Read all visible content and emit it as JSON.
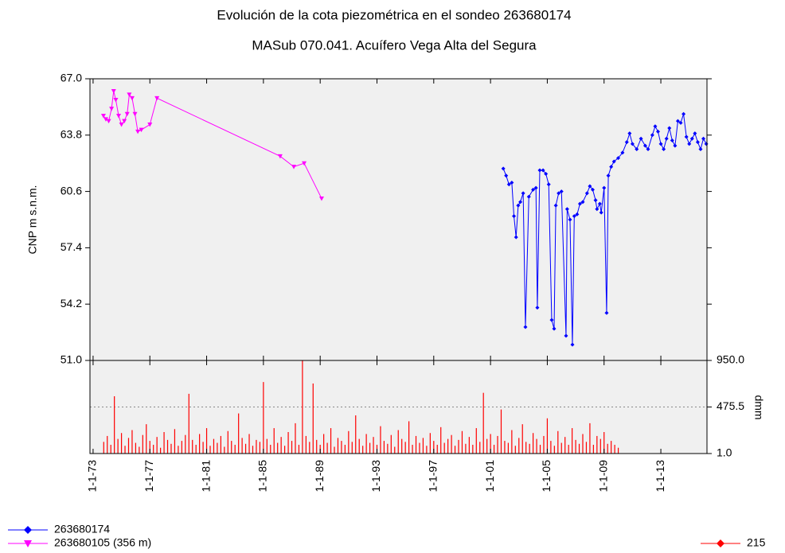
{
  "chart_data": [
    {
      "type": "line",
      "title": "Evolución de la cota piezométrica en el sondeo 263680174",
      "subtitle": "MASub 070.041. Acuífero Vega Alta del Segura",
      "y_label": "CNP m s.n.m.",
      "xlim": [
        1972.78,
        2016.25
      ],
      "ylim": [
        51,
        67
      ],
      "yticks": [
        {
          "value": 51,
          "label": "51.0"
        },
        54.2,
        57.4,
        60.6,
        63.8,
        {
          "value": 67,
          "label": "67.0"
        }
      ],
      "series": [
        {
          "name": "263680174",
          "color": "#0000ff",
          "marker": "diamond",
          "x": [
            2001.9,
            2002.1,
            2002.3,
            2002.5,
            2002.65,
            2002.8,
            2002.95,
            2003.1,
            2003.3,
            2003.46,
            2003.7,
            2004.0,
            2004.2,
            2004.3,
            2004.47,
            2004.7,
            2004.9,
            2005.1,
            2005.31,
            2005.48,
            2005.6,
            2005.8,
            2006.0,
            2006.32,
            2006.4,
            2006.6,
            2006.77,
            2006.9,
            2007.1,
            2007.3,
            2007.5,
            2007.8,
            2008.0,
            2008.2,
            2008.4,
            2008.5,
            2008.7,
            2008.8,
            2009.0,
            2009.18,
            2009.3,
            2009.5,
            2009.7,
            2010.0,
            2010.3,
            2010.6,
            2010.8,
            2011.0,
            2011.3,
            2011.6,
            2011.9,
            2012.1,
            2012.4,
            2012.6,
            2012.8,
            2013.0,
            2013.2,
            2013.4,
            2013.6,
            2013.8,
            2014.0,
            2014.2,
            2014.4,
            2014.6,
            2014.8,
            2015.0,
            2015.2,
            2015.4,
            2015.6,
            2015.8,
            2016.0,
            2016.2
          ],
          "values": [
            61.9,
            61.5,
            61.0,
            61.1,
            59.2,
            58.0,
            59.8,
            60.0,
            60.5,
            52.9,
            60.3,
            60.7,
            60.8,
            54.0,
            61.8,
            61.8,
            61.6,
            61.0,
            53.3,
            52.8,
            59.8,
            60.5,
            60.6,
            52.4,
            59.6,
            59.0,
            51.9,
            59.2,
            59.3,
            59.9,
            60.0,
            60.5,
            60.9,
            60.7,
            60.1,
            59.6,
            59.9,
            59.4,
            60.8,
            53.7,
            61.5,
            62.0,
            62.3,
            62.5,
            62.8,
            63.4,
            63.9,
            63.3,
            63.0,
            63.6,
            63.2,
            63.0,
            63.8,
            64.3,
            64.0,
            63.3,
            63.0,
            63.6,
            64.2,
            63.5,
            63.2,
            64.6,
            64.5,
            65.0,
            63.7,
            63.3,
            63.6,
            63.9,
            63.4,
            63.0,
            63.6,
            63.3
          ]
        },
        {
          "name": "263680105 (356 m)",
          "color": "#ff00ff",
          "marker": "triangle-down",
          "x": [
            1973.73,
            1973.9,
            1974.1,
            1974.3,
            1974.45,
            1974.6,
            1974.8,
            1975.0,
            1975.2,
            1975.4,
            1975.55,
            1975.75,
            1975.95,
            1976.15,
            1976.4,
            1977.0,
            1977.5,
            1986.18,
            1987.14,
            1987.87,
            1989.1
          ],
          "values": [
            64.9,
            64.7,
            64.6,
            65.3,
            66.3,
            65.8,
            64.9,
            64.4,
            64.6,
            65.0,
            66.1,
            65.9,
            65.0,
            64.0,
            64.1,
            64.4,
            65.9,
            62.6,
            62.0,
            62.2,
            60.2
          ]
        }
      ]
    },
    {
      "type": "bar",
      "y_label": "dmm",
      "xlim": [
        1972.78,
        2016.25
      ],
      "ylim": [
        1,
        950
      ],
      "yticks": [
        {
          "value": 1,
          "label": "1.0"
        },
        475.5,
        {
          "value": 950,
          "label": "950.0"
        }
      ],
      "xticks": [
        {
          "value": 1973,
          "label": "1-1-73"
        },
        {
          "value": 1977,
          "label": "1-1-77"
        },
        {
          "value": 1981,
          "label": "1-1-81"
        },
        {
          "value": 1985,
          "label": "1-1-85"
        },
        {
          "value": 1989,
          "label": "1-1-89"
        },
        {
          "value": 1993,
          "label": "1-1-93"
        },
        {
          "value": 1997,
          "label": "1-1-97"
        },
        {
          "value": 2001,
          "label": "1-1-01"
        },
        {
          "value": 2005,
          "label": "1-1-05"
        },
        {
          "value": 2009,
          "label": "1-1-09"
        },
        {
          "value": 2013,
          "label": "1-1-13"
        }
      ],
      "series": [
        {
          "name": "215",
          "color": "#ff0000",
          "x": [
            1973.75,
            1974,
            1974.25,
            1974.5,
            1974.75,
            1975,
            1975.25,
            1975.5,
            1975.75,
            1976,
            1976.25,
            1976.5,
            1976.75,
            1977,
            1977.25,
            1977.5,
            1977.75,
            1978,
            1978.25,
            1978.5,
            1978.75,
            1979,
            1979.25,
            1979.5,
            1979.75,
            1980,
            1980.25,
            1980.5,
            1980.75,
            1981,
            1981.25,
            1981.5,
            1981.75,
            1982,
            1982.25,
            1982.5,
            1982.75,
            1983,
            1983.25,
            1983.5,
            1983.75,
            1984,
            1984.25,
            1984.5,
            1984.75,
            1985,
            1985.25,
            1985.5,
            1985.75,
            1986,
            1986.25,
            1986.5,
            1986.75,
            1987,
            1987.25,
            1987.5,
            1987.75,
            1988,
            1988.25,
            1988.5,
            1988.75,
            1989,
            1989.25,
            1989.5,
            1989.75,
            1990,
            1990.25,
            1990.5,
            1990.75,
            1991,
            1991.25,
            1991.5,
            1991.75,
            1992,
            1992.25,
            1992.5,
            1992.75,
            1993,
            1993.25,
            1993.5,
            1993.75,
            1994,
            1994.25,
            1994.5,
            1994.75,
            1995,
            1995.25,
            1995.5,
            1995.75,
            1996,
            1996.25,
            1996.5,
            1996.75,
            1997,
            1997.25,
            1997.5,
            1997.75,
            1998,
            1998.25,
            1998.5,
            1998.75,
            1999,
            1999.25,
            1999.5,
            1999.75,
            2000,
            2000.25,
            2000.5,
            2000.75,
            2001,
            2001.25,
            2001.5,
            2001.75,
            2002,
            2002.25,
            2002.5,
            2002.75,
            2003,
            2003.25,
            2003.5,
            2003.75,
            2004,
            2004.25,
            2004.5,
            2004.75,
            2005,
            2005.25,
            2005.5,
            2005.75,
            2006,
            2006.25,
            2006.5,
            2006.75,
            2007,
            2007.25,
            2007.5,
            2007.75,
            2008,
            2008.25,
            2008.5,
            2008.75,
            2009,
            2009.25,
            2009.5,
            2009.75,
            2010
          ],
          "values": [
            120,
            180,
            90,
            585,
            150,
            210,
            80,
            160,
            240,
            110,
            70,
            190,
            300,
            130,
            90,
            170,
            60,
            220,
            140,
            100,
            250,
            80,
            130,
            190,
            610,
            140,
            90,
            200,
            120,
            260,
            80,
            150,
            110,
            180,
            70,
            230,
            130,
            90,
            410,
            160,
            100,
            200,
            80,
            140,
            120,
            730,
            150,
            90,
            260,
            110,
            170,
            80,
            220,
            130,
            310,
            90,
            950,
            180,
            120,
            715,
            140,
            90,
            200,
            110,
            260,
            70,
            160,
            130,
            90,
            230,
            120,
            390,
            150,
            80,
            200,
            110,
            170,
            90,
            280,
            130,
            100,
            190,
            70,
            240,
            150,
            120,
            330,
            90,
            180,
            110,
            160,
            80,
            210,
            130,
            90,
            270,
            110,
            150,
            190,
            80,
            140,
            230,
            100,
            170,
            90,
            260,
            120,
            620,
            150,
            200,
            90,
            180,
            450,
            130,
            110,
            240,
            80,
            160,
            300,
            120,
            100,
            210,
            150,
            90,
            180,
            360,
            130,
            80,
            230,
            110,
            170,
            90,
            260,
            140,
            100,
            200,
            120,
            310,
            90,
            180,
            150,
            220,
            100,
            130,
            90,
            60
          ]
        }
      ]
    }
  ]
}
